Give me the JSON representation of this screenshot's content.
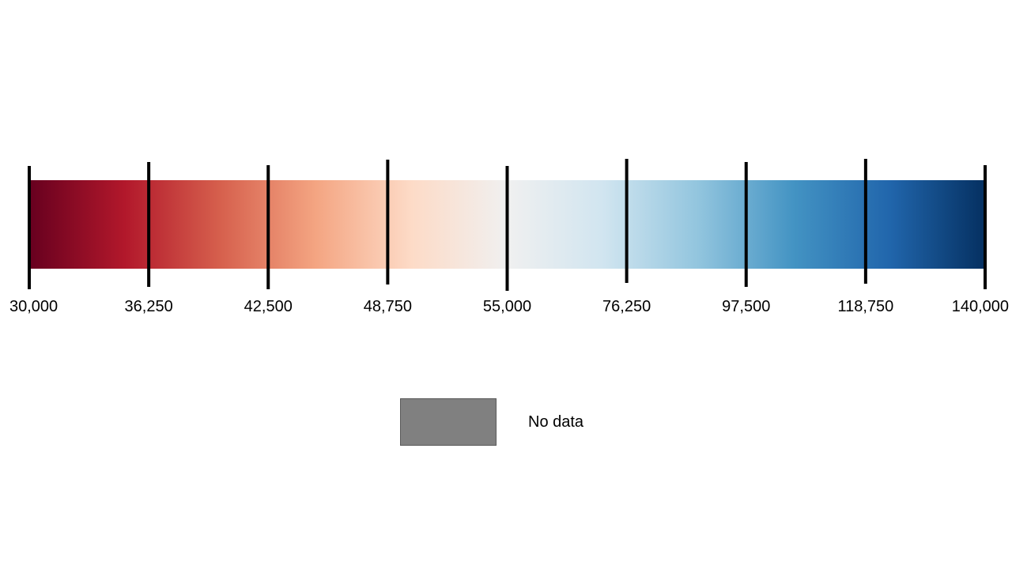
{
  "chart_data": {
    "type": "colorbar",
    "ticks": [
      {
        "value": 30000,
        "label": "30,000"
      },
      {
        "value": 36250,
        "label": "36,250"
      },
      {
        "value": 42500,
        "label": "42,500"
      },
      {
        "value": 48750,
        "label": "48,750"
      },
      {
        "value": 55000,
        "label": "55,000"
      },
      {
        "value": 76250,
        "label": "76,250"
      },
      {
        "value": 97500,
        "label": "97,500"
      },
      {
        "value": 118750,
        "label": "118,750"
      },
      {
        "value": 140000,
        "label": "140,000"
      }
    ],
    "colormap": [
      "#67001f",
      "#b2182b",
      "#d6604d",
      "#f4a582",
      "#fddbc7",
      "#f0f0f0",
      "#d1e5f0",
      "#92c5de",
      "#4393c3",
      "#2166ac",
      "#053061"
    ],
    "min": 30000,
    "max": 140000,
    "midpoint": 55000,
    "scale": "piecewise-linear (30,000–55,000 and 55,000–140,000 each span half of the bar)"
  },
  "no_data": {
    "label": "No data",
    "color": "#808080"
  }
}
